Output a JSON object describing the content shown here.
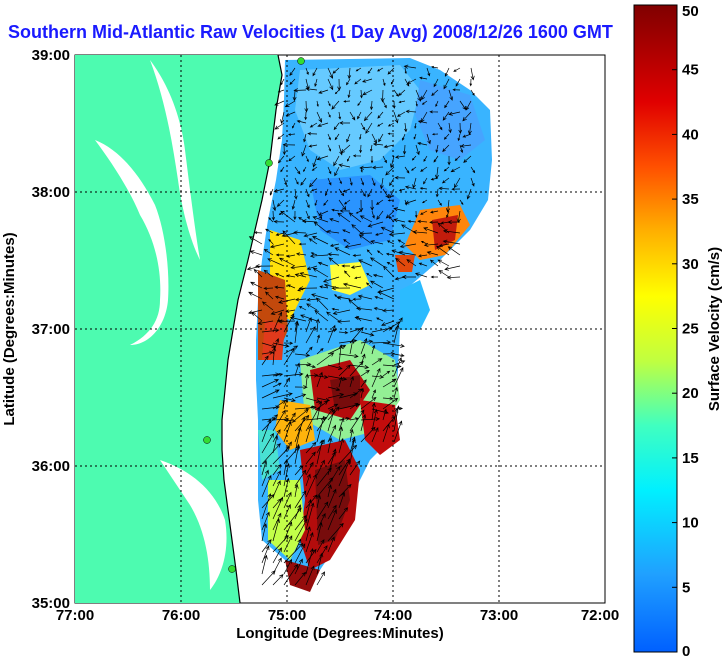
{
  "title": "Southern Mid-Atlantic Raw Velocities (1 Day Avg) 2008/12/26 1600 GMT",
  "axes": {
    "xlabel": "Longitude (Degrees:Minutes)",
    "ylabel": "Latitude (Degrees:Minutes)",
    "xticks": [
      "77:00",
      "76:00",
      "75:00",
      "74:00",
      "73:00",
      "72:00"
    ],
    "yticks": [
      "39:00",
      "38:00",
      "37:00",
      "36:00",
      "35:00"
    ]
  },
  "colorbar": {
    "label": "Surface Velocity (cm/s)",
    "ticks": [
      "50",
      "45",
      "40",
      "35",
      "30",
      "25",
      "20",
      "15",
      "10",
      "5",
      "0"
    ],
    "min": 0,
    "max": 50,
    "colormap": [
      "#0000c8",
      "#0060ff",
      "#00c0ff",
      "#40ffc0",
      "#c0ff40",
      "#ffe000",
      "#ff8000",
      "#ff2000",
      "#a00000",
      "#700000"
    ]
  },
  "colors": {
    "land": "#4dfbb0",
    "ocean": "#ffffff",
    "coastline": "#000000",
    "station": "#33dd33",
    "title": "#1a1aff"
  }
}
